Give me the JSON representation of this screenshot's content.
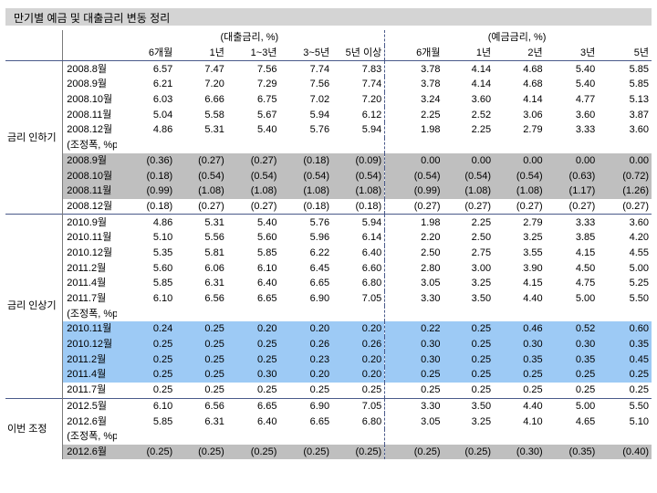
{
  "title": "만기별 예금 및 대출금리 변동 정리",
  "loan_header": "(대출금리, %)",
  "deposit_header": "(예금금리, %)",
  "loan_cols": [
    "6개월",
    "1년",
    "1~3년",
    "3~5년",
    "5년 이상"
  ],
  "deposit_cols": [
    "6개월",
    "1년",
    "2년",
    "3년",
    "5년"
  ],
  "groups": [
    {
      "label": "금리 인하기",
      "rows": [
        {
          "label": "2008.8월",
          "loan": [
            "6.57",
            "7.47",
            "7.56",
            "7.74",
            "7.83"
          ],
          "dep": [
            "3.78",
            "4.14",
            "4.68",
            "5.40",
            "5.85"
          ],
          "style": ""
        },
        {
          "label": "2008.9월",
          "loan": [
            "6.21",
            "7.20",
            "7.29",
            "7.56",
            "7.74"
          ],
          "dep": [
            "3.78",
            "4.14",
            "4.68",
            "5.40",
            "5.85"
          ],
          "style": ""
        },
        {
          "label": "2008.10월",
          "loan": [
            "6.03",
            "6.66",
            "6.75",
            "7.02",
            "7.20"
          ],
          "dep": [
            "3.24",
            "3.60",
            "4.14",
            "4.77",
            "5.13"
          ],
          "style": ""
        },
        {
          "label": "2008.11월",
          "loan": [
            "5.04",
            "5.58",
            "5.67",
            "5.94",
            "6.12"
          ],
          "dep": [
            "2.25",
            "2.52",
            "3.06",
            "3.60",
            "3.87"
          ],
          "style": ""
        },
        {
          "label": "2008.12월",
          "loan": [
            "4.86",
            "5.31",
            "5.40",
            "5.76",
            "5.94"
          ],
          "dep": [
            "1.98",
            "2.25",
            "2.79",
            "3.33",
            "3.60"
          ],
          "style": ""
        },
        {
          "label": "(조정폭, %p)",
          "loan": [
            "",
            "",
            "",
            "",
            ""
          ],
          "dep": [
            "",
            "",
            "",
            "",
            ""
          ],
          "style": ""
        },
        {
          "label": "2008.9월",
          "loan": [
            "(0.36)",
            "(0.27)",
            "(0.27)",
            "(0.18)",
            "(0.09)"
          ],
          "dep": [
            "0.00",
            "0.00",
            "0.00",
            "0.00",
            "0.00"
          ],
          "style": "gray"
        },
        {
          "label": "2008.10월",
          "loan": [
            "(0.18)",
            "(0.54)",
            "(0.54)",
            "(0.54)",
            "(0.54)"
          ],
          "dep": [
            "(0.54)",
            "(0.54)",
            "(0.54)",
            "(0.63)",
            "(0.72)"
          ],
          "style": "gray"
        },
        {
          "label": "2008.11월",
          "loan": [
            "(0.99)",
            "(1.08)",
            "(1.08)",
            "(1.08)",
            "(1.08)"
          ],
          "dep": [
            "(0.99)",
            "(1.08)",
            "(1.08)",
            "(1.17)",
            "(1.26)"
          ],
          "style": "gray"
        },
        {
          "label": "2008.12월",
          "loan": [
            "(0.18)",
            "(0.27)",
            "(0.27)",
            "(0.18)",
            "(0.18)"
          ],
          "dep": [
            "(0.27)",
            "(0.27)",
            "(0.27)",
            "(0.27)",
            "(0.27)"
          ],
          "style": ""
        }
      ]
    },
    {
      "label": "금리 인상기",
      "rows": [
        {
          "label": "2010.9월",
          "loan": [
            "4.86",
            "5.31",
            "5.40",
            "5.76",
            "5.94"
          ],
          "dep": [
            "1.98",
            "2.25",
            "2.79",
            "3.33",
            "3.60"
          ],
          "style": ""
        },
        {
          "label": "2010.11월",
          "loan": [
            "5.10",
            "5.56",
            "5.60",
            "5.96",
            "6.14"
          ],
          "dep": [
            "2.20",
            "2.50",
            "3.25",
            "3.85",
            "4.20"
          ],
          "style": ""
        },
        {
          "label": "2010.12월",
          "loan": [
            "5.35",
            "5.81",
            "5.85",
            "6.22",
            "6.40"
          ],
          "dep": [
            "2.50",
            "2.75",
            "3.55",
            "4.15",
            "4.55"
          ],
          "style": ""
        },
        {
          "label": "2011.2월",
          "loan": [
            "5.60",
            "6.06",
            "6.10",
            "6.45",
            "6.60"
          ],
          "dep": [
            "2.80",
            "3.00",
            "3.90",
            "4.50",
            "5.00"
          ],
          "style": ""
        },
        {
          "label": "2011.4월",
          "loan": [
            "5.85",
            "6.31",
            "6.40",
            "6.65",
            "6.80"
          ],
          "dep": [
            "3.05",
            "3.25",
            "4.15",
            "4.75",
            "5.25"
          ],
          "style": ""
        },
        {
          "label": "2011.7월",
          "loan": [
            "6.10",
            "6.56",
            "6.65",
            "6.90",
            "7.05"
          ],
          "dep": [
            "3.30",
            "3.50",
            "4.40",
            "5.00",
            "5.50"
          ],
          "style": ""
        },
        {
          "label": "(조정폭, %p)",
          "loan": [
            "",
            "",
            "",
            "",
            ""
          ],
          "dep": [
            "",
            "",
            "",
            "",
            ""
          ],
          "style": ""
        },
        {
          "label": "2010.11월",
          "loan": [
            "0.24",
            "0.25",
            "0.20",
            "0.20",
            "0.20"
          ],
          "dep": [
            "0.22",
            "0.25",
            "0.46",
            "0.52",
            "0.60"
          ],
          "style": "blue"
        },
        {
          "label": "2010.12월",
          "loan": [
            "0.25",
            "0.25",
            "0.25",
            "0.26",
            "0.26"
          ],
          "dep": [
            "0.30",
            "0.25",
            "0.30",
            "0.30",
            "0.35"
          ],
          "style": "blue"
        },
        {
          "label": "2011.2월",
          "loan": [
            "0.25",
            "0.25",
            "0.25",
            "0.23",
            "0.20"
          ],
          "dep": [
            "0.30",
            "0.25",
            "0.35",
            "0.35",
            "0.45"
          ],
          "style": "blue"
        },
        {
          "label": "2011.4월",
          "loan": [
            "0.25",
            "0.25",
            "0.30",
            "0.20",
            "0.20"
          ],
          "dep": [
            "0.25",
            "0.25",
            "0.25",
            "0.25",
            "0.25"
          ],
          "style": "blue"
        },
        {
          "label": "2011.7월",
          "loan": [
            "0.25",
            "0.25",
            "0.25",
            "0.25",
            "0.25"
          ],
          "dep": [
            "0.25",
            "0.25",
            "0.25",
            "0.25",
            "0.25"
          ],
          "style": ""
        }
      ]
    },
    {
      "label": "이번 조정",
      "rows": [
        {
          "label": "2012.5월",
          "loan": [
            "6.10",
            "6.56",
            "6.65",
            "6.90",
            "7.05"
          ],
          "dep": [
            "3.30",
            "3.50",
            "4.40",
            "5.00",
            "5.50"
          ],
          "style": ""
        },
        {
          "label": "2012.6월",
          "loan": [
            "5.85",
            "6.31",
            "6.40",
            "6.65",
            "6.80"
          ],
          "dep": [
            "3.05",
            "3.25",
            "4.10",
            "4.65",
            "5.10"
          ],
          "style": ""
        },
        {
          "label": "(조정폭, %p)",
          "loan": [
            "",
            "",
            "",
            "",
            ""
          ],
          "dep": [
            "",
            "",
            "",
            "",
            ""
          ],
          "style": ""
        },
        {
          "label": "2012.6월",
          "loan": [
            "(0.25)",
            "(0.25)",
            "(0.25)",
            "(0.25)",
            "(0.25)"
          ],
          "dep": [
            "(0.25)",
            "(0.25)",
            "(0.30)",
            "(0.35)",
            "(0.40)"
          ],
          "style": "gray"
        }
      ]
    }
  ]
}
